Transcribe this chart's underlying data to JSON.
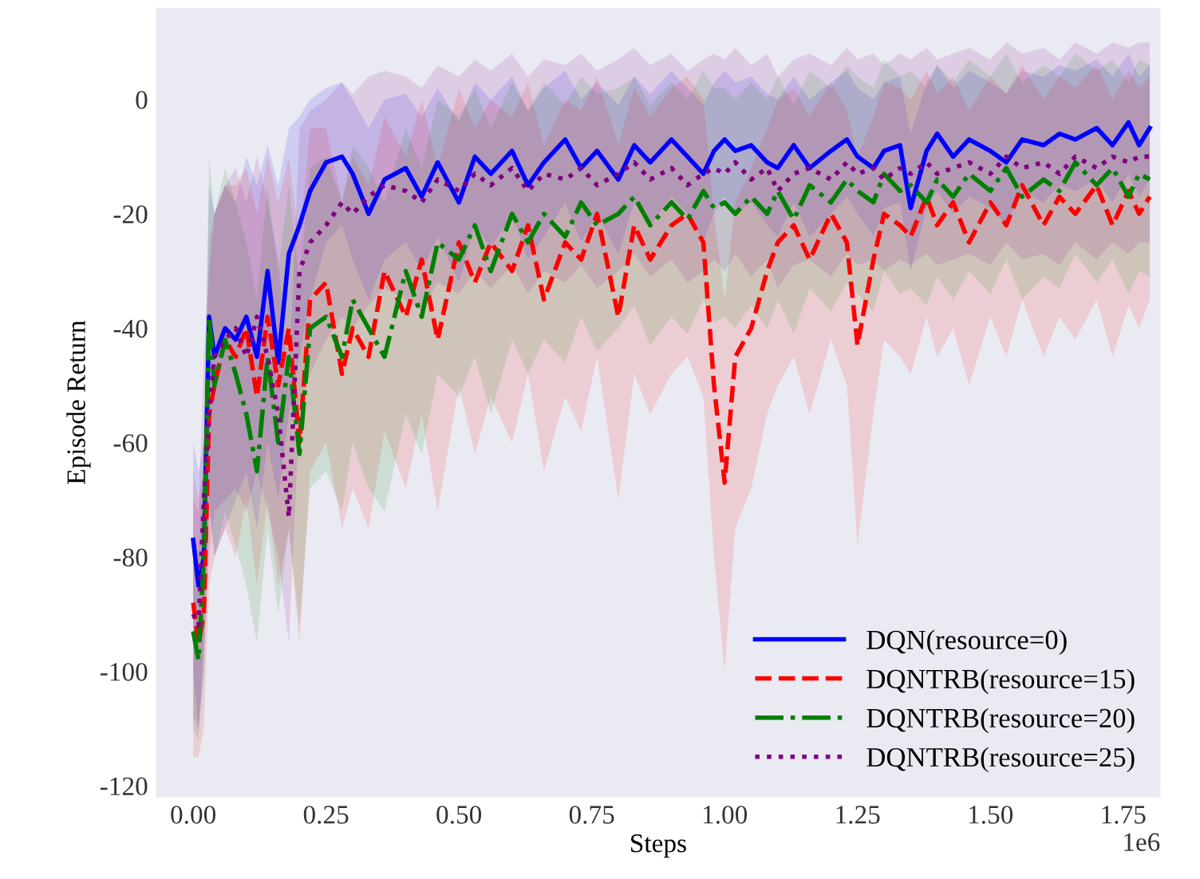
{
  "chart_data": {
    "type": "line",
    "xlabel": "Steps",
    "ylabel": "Episode Return",
    "annotations": [
      "1e6"
    ],
    "x": [
      0,
      0.01,
      0.02,
      0.03,
      0.04,
      0.06,
      0.08,
      0.1,
      0.12,
      0.14,
      0.16,
      0.18,
      0.2,
      0.22,
      0.25,
      0.28,
      0.3,
      0.33,
      0.36,
      0.4,
      0.43,
      0.46,
      0.5,
      0.53,
      0.56,
      0.6,
      0.63,
      0.66,
      0.7,
      0.73,
      0.76,
      0.8,
      0.83,
      0.86,
      0.9,
      0.93,
      0.96,
      0.98,
      1.0,
      1.02,
      1.05,
      1.08,
      1.1,
      1.13,
      1.16,
      1.2,
      1.23,
      1.25,
      1.28,
      1.3,
      1.33,
      1.35,
      1.38,
      1.4,
      1.43,
      1.46,
      1.5,
      1.53,
      1.56,
      1.6,
      1.63,
      1.66,
      1.7,
      1.73,
      1.76,
      1.78,
      1.8
    ],
    "series": [
      {
        "name": "DQN(resource=0)",
        "color": "#0000ff",
        "line_style": "solid",
        "values": [
          -77,
          -85,
          -80,
          -38,
          -45,
          -40,
          -42,
          -38,
          -45,
          -30,
          -46,
          -27,
          -22,
          -16,
          -11,
          -10,
          -13,
          -20,
          -14,
          -12,
          -17,
          -11,
          -18,
          -10,
          -13,
          -9,
          -15,
          -11,
          -7,
          -12,
          -9,
          -14,
          -8,
          -11,
          -7,
          -10,
          -13,
          -9,
          -7,
          -9,
          -8,
          -11,
          -12,
          -8,
          -12,
          -9,
          -7,
          -10,
          -12,
          -9,
          -8,
          -19,
          -9,
          -6,
          -10,
          -7,
          -9,
          -11,
          -7,
          -8,
          -6,
          -7,
          -5,
          -8,
          -4,
          -8,
          -5
        ],
        "lower": [
          -100,
          -110,
          -100,
          -70,
          -80,
          -75,
          -70,
          -65,
          -75,
          -60,
          -70,
          -55,
          -45,
          -35,
          -25,
          -22,
          -28,
          -35,
          -28,
          -25,
          -30,
          -24,
          -32,
          -22,
          -26,
          -20,
          -28,
          -24,
          -18,
          -25,
          -20,
          -27,
          -18,
          -22,
          -17,
          -20,
          -25,
          -20,
          -17,
          -20,
          -18,
          -22,
          -24,
          -18,
          -24,
          -20,
          -17,
          -20,
          -24,
          -19,
          -18,
          -30,
          -19,
          -16,
          -20,
          -17,
          -19,
          -22,
          -16,
          -18,
          -15,
          -16,
          -14,
          -18,
          -13,
          -17,
          -14
        ],
        "upper": [
          -60,
          -65,
          -60,
          -15,
          -20,
          -15,
          -18,
          -10,
          -15,
          -8,
          -15,
          -5,
          -3,
          0,
          2,
          3,
          0,
          -5,
          0,
          1,
          -3,
          2,
          -4,
          3,
          0,
          4,
          -2,
          2,
          5,
          0,
          3,
          -1,
          4,
          1,
          5,
          2,
          -1,
          3,
          5,
          3,
          4,
          1,
          0,
          4,
          0,
          3,
          5,
          2,
          0,
          3,
          4,
          -6,
          3,
          6,
          2,
          5,
          3,
          1,
          5,
          4,
          6,
          5,
          7,
          4,
          8,
          4,
          6
        ]
      },
      {
        "name": "DQNTRB(resource=15)",
        "color": "#ff0000",
        "line_style": "dashed",
        "values": [
          -88,
          -95,
          -90,
          -55,
          -50,
          -42,
          -45,
          -40,
          -52,
          -38,
          -50,
          -40,
          -60,
          -35,
          -32,
          -48,
          -40,
          -45,
          -30,
          -38,
          -28,
          -42,
          -25,
          -32,
          -25,
          -30,
          -22,
          -35,
          -25,
          -28,
          -20,
          -38,
          -22,
          -28,
          -22,
          -20,
          -25,
          -50,
          -67,
          -45,
          -40,
          -30,
          -25,
          -22,
          -28,
          -20,
          -25,
          -43,
          -28,
          -20,
          -22,
          -24,
          -17,
          -22,
          -18,
          -25,
          -18,
          -22,
          -15,
          -22,
          -17,
          -20,
          -15,
          -22,
          -16,
          -20,
          -17
        ],
        "lower": [
          -115,
          -115,
          -110,
          -85,
          -80,
          -75,
          -80,
          -70,
          -85,
          -70,
          -85,
          -75,
          -95,
          -65,
          -60,
          -75,
          -68,
          -75,
          -58,
          -68,
          -55,
          -72,
          -50,
          -62,
          -52,
          -60,
          -48,
          -65,
          -52,
          -58,
          -45,
          -70,
          -48,
          -55,
          -48,
          -45,
          -52,
          -80,
          -100,
          -75,
          -68,
          -55,
          -50,
          -45,
          -55,
          -42,
          -50,
          -78,
          -55,
          -42,
          -45,
          -48,
          -38,
          -45,
          -40,
          -50,
          -38,
          -45,
          -35,
          -45,
          -38,
          -42,
          -35,
          -45,
          -36,
          -40,
          -35
        ],
        "upper": [
          -65,
          -70,
          -65,
          -25,
          -20,
          -15,
          -15,
          -12,
          -20,
          -10,
          -18,
          -10,
          -25,
          -5,
          -5,
          -18,
          -10,
          -15,
          -3,
          -10,
          0,
          -12,
          2,
          -5,
          0,
          -3,
          3,
          -8,
          0,
          -2,
          4,
          -8,
          2,
          -3,
          2,
          4,
          0,
          -20,
          -35,
          -18,
          -12,
          -5,
          0,
          2,
          -3,
          3,
          -2,
          -10,
          -3,
          3,
          2,
          0,
          5,
          1,
          4,
          -2,
          4,
          1,
          6,
          0,
          4,
          2,
          6,
          0,
          5,
          2,
          4
        ]
      },
      {
        "name": "DQNTRB(resource=20)",
        "color": "#008000",
        "line_style": "dashdot",
        "values": [
          -93,
          -98,
          -80,
          -38,
          -50,
          -42,
          -48,
          -55,
          -65,
          -45,
          -60,
          -45,
          -62,
          -40,
          -38,
          -45,
          -35,
          -40,
          -45,
          -30,
          -38,
          -25,
          -28,
          -22,
          -30,
          -20,
          -25,
          -20,
          -24,
          -18,
          -22,
          -20,
          -17,
          -22,
          -18,
          -21,
          -16,
          -19,
          -18,
          -20,
          -17,
          -20,
          -16,
          -21,
          -15,
          -18,
          -14,
          -16,
          -18,
          -13,
          -16,
          -15,
          -18,
          -14,
          -17,
          -13,
          -16,
          -12,
          -17,
          -14,
          -16,
          -11,
          -15,
          -12,
          -17,
          -13,
          -14
        ],
        "lower": [
          -110,
          -112,
          -100,
          -70,
          -80,
          -72,
          -78,
          -85,
          -95,
          -75,
          -90,
          -75,
          -92,
          -68,
          -65,
          -72,
          -60,
          -68,
          -72,
          -55,
          -62,
          -48,
          -52,
          -45,
          -55,
          -42,
          -48,
          -42,
          -46,
          -38,
          -44,
          -40,
          -36,
          -43,
          -38,
          -41,
          -35,
          -39,
          -38,
          -40,
          -36,
          -40,
          -35,
          -41,
          -33,
          -37,
          -32,
          -34,
          -37,
          -30,
          -34,
          -33,
          -36,
          -31,
          -35,
          -30,
          -34,
          -28,
          -35,
          -31,
          -33,
          -27,
          -32,
          -28,
          -34,
          -30,
          -31
        ],
        "upper": [
          -75,
          -80,
          -60,
          -10,
          -20,
          -12,
          -18,
          -25,
          -35,
          -15,
          -30,
          -15,
          -32,
          -12,
          -10,
          -18,
          -8,
          -12,
          -18,
          -5,
          -12,
          0,
          -3,
          2,
          -5,
          3,
          -2,
          3,
          -1,
          4,
          1,
          2,
          4,
          -1,
          3,
          0,
          5,
          2,
          2,
          0,
          3,
          0,
          4,
          -1,
          5,
          2,
          6,
          4,
          2,
          7,
          4,
          5,
          2,
          6,
          3,
          7,
          4,
          8,
          3,
          6,
          4,
          8,
          5,
          7,
          3,
          7,
          6
        ]
      },
      {
        "name": "DQNTRB(resource=25)",
        "color": "#800080",
        "line_style": "dotted",
        "values": [
          -90,
          -92,
          -70,
          -55,
          -45,
          -42,
          -40,
          -45,
          -38,
          -45,
          -55,
          -73,
          -30,
          -25,
          -22,
          -18,
          -20,
          -17,
          -15,
          -16,
          -18,
          -14,
          -16,
          -13,
          -15,
          -12,
          -16,
          -13,
          -14,
          -12,
          -15,
          -13,
          -11,
          -14,
          -12,
          -15,
          -13,
          -12,
          -13,
          -11,
          -14,
          -12,
          -16,
          -13,
          -12,
          -14,
          -11,
          -13,
          -12,
          -14,
          -12,
          -13,
          -11,
          -13,
          -12,
          -11,
          -13,
          -10,
          -12,
          -11,
          -13,
          -10,
          -12,
          -10,
          -11,
          -10,
          -10
        ],
        "lower": [
          -108,
          -110,
          -95,
          -80,
          -72,
          -70,
          -68,
          -72,
          -65,
          -72,
          -80,
          -95,
          -55,
          -48,
          -42,
          -38,
          -40,
          -36,
          -33,
          -35,
          -37,
          -32,
          -34,
          -30,
          -33,
          -29,
          -34,
          -30,
          -32,
          -29,
          -33,
          -30,
          -27,
          -31,
          -28,
          -32,
          -30,
          -28,
          -30,
          -27,
          -31,
          -28,
          -33,
          -29,
          -28,
          -31,
          -27,
          -29,
          -28,
          -30,
          -28,
          -29,
          -27,
          -29,
          -28,
          -27,
          -29,
          -25,
          -28,
          -27,
          -29,
          -25,
          -28,
          -25,
          -27,
          -25,
          -25
        ],
        "upper": [
          -70,
          -72,
          -45,
          -30,
          -20,
          -15,
          -12,
          -18,
          -10,
          -18,
          -28,
          -50,
          -5,
          -2,
          0,
          3,
          1,
          4,
          5,
          4,
          2,
          6,
          4,
          7,
          5,
          8,
          4,
          7,
          6,
          8,
          5,
          7,
          9,
          6,
          8,
          5,
          7,
          8,
          7,
          9,
          6,
          8,
          4,
          7,
          8,
          6,
          9,
          7,
          8,
          6,
          8,
          7,
          9,
          7,
          8,
          9,
          7,
          10,
          8,
          9,
          7,
          10,
          8,
          10,
          9,
          10,
          10
        ]
      }
    ],
    "xlim": [
      -0.07,
      1.82
    ],
    "ylim": [
      -122,
      16
    ],
    "xticks": [
      {
        "value": 0,
        "label": "0.00"
      },
      0.25,
      {
        "value": 0.5,
        "label": "0.50"
      },
      0.75,
      {
        "value": 1,
        "label": "1.00"
      },
      1.25,
      {
        "value": 1.5,
        "label": "1.50"
      },
      1.75
    ],
    "yticks": [
      -120,
      -100,
      -80,
      -60,
      -40,
      -20,
      0
    ],
    "grid": false,
    "legend": "bottom right",
    "marker": "none"
  }
}
